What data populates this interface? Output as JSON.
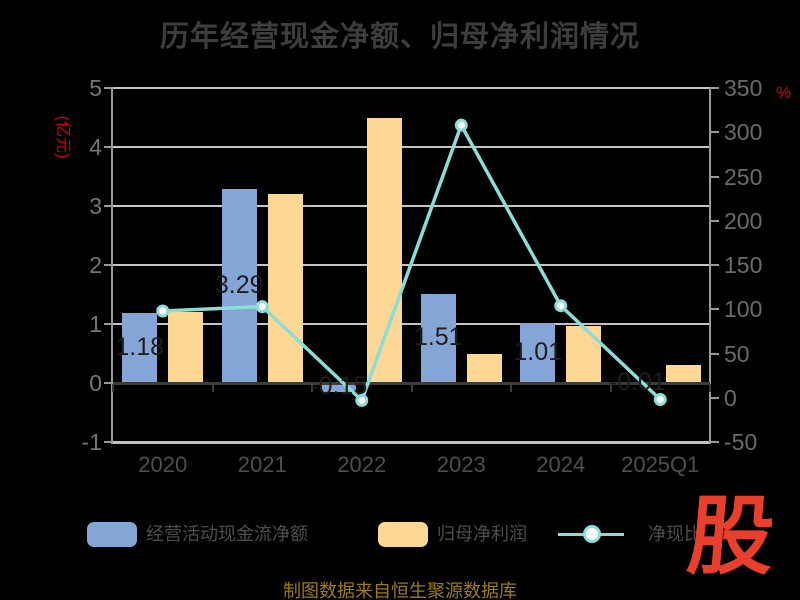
{
  "title": "历年经营现金净额、归母净利润情况",
  "footer": "制图数据来自恒生聚源数据库",
  "watermark": "股",
  "axes": {
    "y_left": {
      "unit_label": "(亿元)",
      "ticks": [
        5,
        4,
        3,
        2,
        1,
        0,
        -1
      ]
    },
    "y_right": {
      "unit_label": "%",
      "ticks": [
        350,
        300,
        250,
        200,
        150,
        100,
        50,
        0,
        -50
      ]
    },
    "x_categories": [
      "2020",
      "2021",
      "2022",
      "2023",
      "2024",
      "2025Q1"
    ]
  },
  "chart_data": {
    "type": "bar+line",
    "categories": [
      "2020",
      "2021",
      "2022",
      "2023",
      "2024",
      "2025Q1"
    ],
    "series": [
      {
        "name": "经营活动现金流净额",
        "type": "bar",
        "axis": "left",
        "color": "#85a5d6",
        "values": [
          1.18,
          3.29,
          -0.15,
          1.51,
          1.01,
          -0.01
        ],
        "data_labels": [
          "1.18",
          "3.29",
          "-0.15",
          "1.51",
          "1.01",
          "-0.01"
        ]
      },
      {
        "name": "归母净利润",
        "type": "bar",
        "axis": "left",
        "color": "#fcd894",
        "values": [
          1.2,
          3.2,
          4.5,
          0.49,
          0.97,
          0.31
        ]
      },
      {
        "name": "净现比",
        "type": "line",
        "axis": "right",
        "color": "#8cdcd8",
        "marker": "white-circle",
        "values": [
          98,
          103,
          -3,
          308,
          104,
          -2
        ]
      }
    ],
    "title": "历年经营现金净额、归母净利润情况",
    "ylabel_left": "(亿元)",
    "ylabel_right": "%",
    "ylim_left": [
      -1,
      5
    ],
    "ylim_right": [
      -50,
      350
    ],
    "grid": "horizontal-left-ticks-only",
    "legend_position": "bottom"
  },
  "legend": {
    "items": [
      {
        "label": "经营活动现金流净额",
        "swatch": "bar",
        "color": "#85a5d6"
      },
      {
        "label": "归母净利润",
        "swatch": "bar",
        "color": "#fcd894"
      },
      {
        "label": "净现比",
        "swatch": "line-marker",
        "color": "#8cdcd8"
      }
    ]
  },
  "colors": {
    "background": "#000000",
    "title_text": "#3d3d3d",
    "axis_unit_red": "#d40000",
    "bar_blue": "#85a5d6",
    "bar_orange": "#fcd894",
    "line_teal": "#8cdcd8",
    "marker_fill": "#ffffff",
    "bar_label": "#1e1e1e",
    "footer_gold": "#9c7c14",
    "watermark_red": "#e8402c"
  }
}
